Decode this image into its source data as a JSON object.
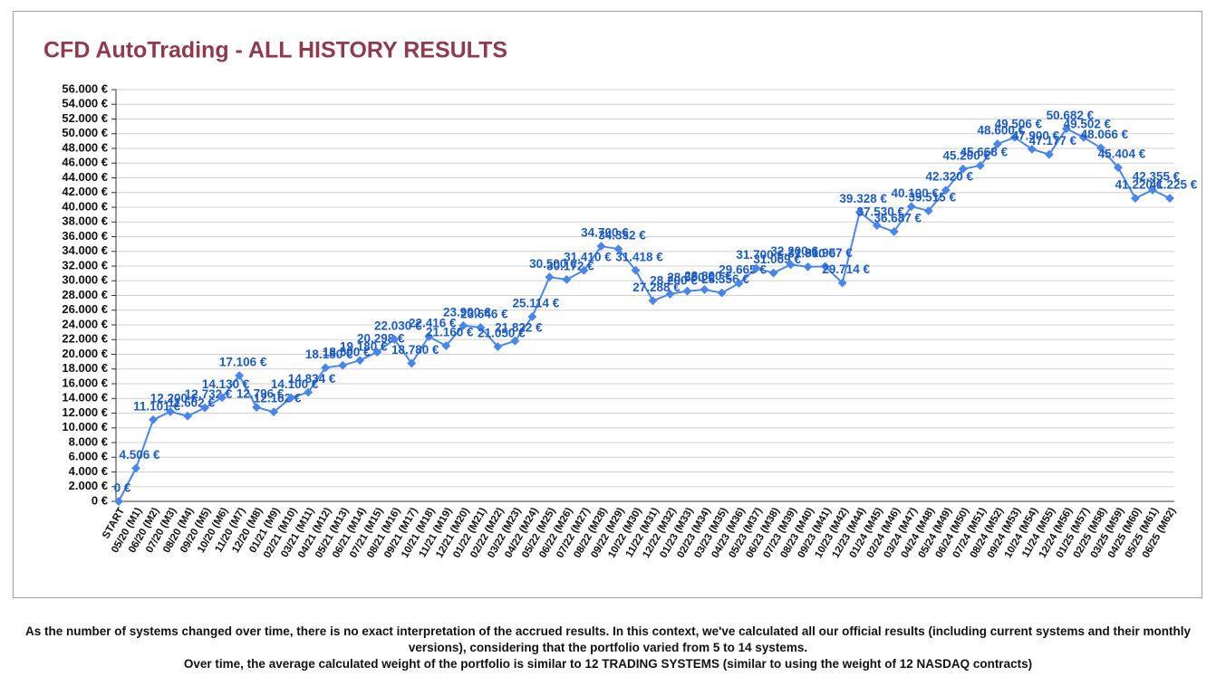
{
  "chart_data": {
    "type": "line",
    "title": "CFD AutoTrading - ALL HISTORY RESULTS",
    "categories": [
      "START",
      "05/20 (M1)",
      "06/20 (M2)",
      "07/20 (M3)",
      "08/20 (M4)",
      "09/20 (M5)",
      "10/20 (M6)",
      "11/20 (M7)",
      "12/20 (M8)",
      "01/21 (M9)",
      "02/21 (M10)",
      "03/21 (M11)",
      "04/21 (M12)",
      "05/21 (M13)",
      "06/21 (M14)",
      "07/21 (M15)",
      "08/21 (M16)",
      "09/21 (M17)",
      "10/21 (M18)",
      "11/21 (M19)",
      "12/21 (M20)",
      "01/22 (M21)",
      "02/22 (M22)",
      "03/22 (M23)",
      "04/22 (M24)",
      "05/22 (M25)",
      "06/22 (M26)",
      "07/22 (M27)",
      "08/22 (M28)",
      "09/22 (M29)",
      "10/22 (M30)",
      "11/22 (M31)",
      "12/22 (M32)",
      "01/23 (M33)",
      "02/23 (M34)",
      "03/23 (M35)",
      "04/23 (M36)",
      "05/23 (M37)",
      "06/23 (M38)",
      "07/23 (M39)",
      "08/23 (M40)",
      "09/23 (M41)",
      "10/23 (M42)",
      "12/23 (M44)",
      "01/24 (M45)",
      "02/24 (M46)",
      "03/24 (M47)",
      "04/24 (M48)",
      "05/24 (M49)",
      "06/24 (M50)",
      "07/24 (M51)",
      "08/24 (M52)",
      "09/24 (M53)",
      "10/24 (M54)",
      "11/24 (M55)",
      "12/24 (M56)",
      "01/25 (M57)",
      "02/25 (M58)",
      "03/25 (M59)",
      "04/25 (M60)",
      "05/25 (M61)",
      "06/25 (M62)"
    ],
    "values": [
      0,
      4506,
      11101,
      12200,
      11602,
      12732,
      14130,
      17106,
      12796,
      12162,
      14100,
      14834,
      18180,
      18500,
      19180,
      20298,
      22030,
      18780,
      22416,
      21160,
      23900,
      23646,
      21050,
      21822,
      25114,
      30500,
      30172,
      31410,
      34700,
      34332,
      31418,
      27288,
      28200,
      28600,
      28800,
      28356,
      29665,
      31700,
      31069,
      32200,
      31900,
      31957,
      29714,
      39328,
      37530,
      36687,
      40100,
      39515,
      42320,
      45200,
      45668,
      48600,
      49506,
      47900,
      47177,
      50682,
      49502,
      48066,
      45404,
      41220,
      42355,
      41225
    ],
    "value_labels": [
      "0 €",
      "4.506 €",
      "11.101 €",
      "12.200 €",
      "11.602 €",
      "12.732 €",
      "14.130 €",
      "17.106 €",
      "12.796 €",
      "12.162 €",
      "14.100 €",
      "14.834 €",
      "18.180 €",
      "18.500 €",
      "19.180 €",
      "20.298 €",
      "22.030 €",
      "18.780 €",
      "22.416 €",
      "21.160 €",
      "23.900 €",
      "23.646 €",
      "21.050 €",
      "21.822 €",
      "25.114 €",
      "30.500 €",
      "30.172 €",
      "31.410 €",
      "34.700 €",
      "34.332 €",
      "31.418 €",
      "27.288 €",
      "28.200 €",
      "28.600 €",
      "28.800 €",
      "28.356 €",
      "29.665 €",
      "31.700 €",
      "31.069 €",
      "32.200 €",
      "31.900 €",
      "31.957 €",
      "29.714 €",
      "39.328 €",
      "37.530 €",
      "36.687 €",
      "40.100 €",
      "39.515 €",
      "42.320 €",
      "45.200 €",
      "45.668 €",
      "48.600 €",
      "49.506 €",
      "47.900 €",
      "47.177 €",
      "50.682 €",
      "49.502 €",
      "48.066 €",
      "45.404 €",
      "41.220 €",
      "42.355 €",
      "41.225 €"
    ],
    "color": "#4a86e8",
    "label_color": "#1c5bc4",
    "title_color": "#8e3b4f",
    "ylim": [
      0,
      56000
    ],
    "yticks": [
      {
        "value": 0,
        "label": "0 €"
      },
      {
        "value": 2000,
        "label": "2.000 €"
      },
      {
        "value": 4000,
        "label": "4.000 €"
      },
      {
        "value": 6000,
        "label": "6.000 €"
      },
      {
        "value": 8000,
        "label": "8.000 €"
      },
      {
        "value": 10000,
        "label": "10.000 €"
      },
      {
        "value": 12000,
        "label": "12.000 €"
      },
      {
        "value": 14000,
        "label": "14.000 €"
      },
      {
        "value": 16000,
        "label": "16.000 €"
      },
      {
        "value": 18000,
        "label": "18.000 €"
      },
      {
        "value": 20000,
        "label": "20.000 €"
      },
      {
        "value": 22000,
        "label": "22.000 €"
      },
      {
        "value": 24000,
        "label": "24.000 €"
      },
      {
        "value": 26000,
        "label": "26.000 €"
      },
      {
        "value": 28000,
        "label": "28.000 €"
      },
      {
        "value": 30000,
        "label": "30.000 €"
      },
      {
        "value": 32000,
        "label": "32.000 €"
      },
      {
        "value": 34000,
        "label": "34.000 €"
      },
      {
        "value": 36000,
        "label": "36.000 €"
      },
      {
        "value": 38000,
        "label": "38.000 €"
      },
      {
        "value": 40000,
        "label": "40.000 €"
      },
      {
        "value": 42000,
        "label": "42.000 €"
      },
      {
        "value": 44000,
        "label": "44.000 €"
      },
      {
        "value": 46000,
        "label": "46.000 €"
      },
      {
        "value": 48000,
        "label": "48.000 €"
      },
      {
        "value": 50000,
        "label": "50.000 €"
      },
      {
        "value": 52000,
        "label": "52.000 €"
      },
      {
        "value": 54000,
        "label": "54.000 €"
      },
      {
        "value": 56000,
        "label": "56.000 €"
      }
    ],
    "grid": true
  },
  "notes": [
    "As the number of systems changed over time, there is no exact interpretation of the accrued results. In this context, we've calculated all our official results (including current systems and their monthly versions), considering that the portfolio varied from 5 to 14 systems.",
    "Over time, the average calculated weight of the portfolio is similar to 12 TRADING SYSTEMS (similar to using the weight of 12 NASDAQ contracts)"
  ]
}
